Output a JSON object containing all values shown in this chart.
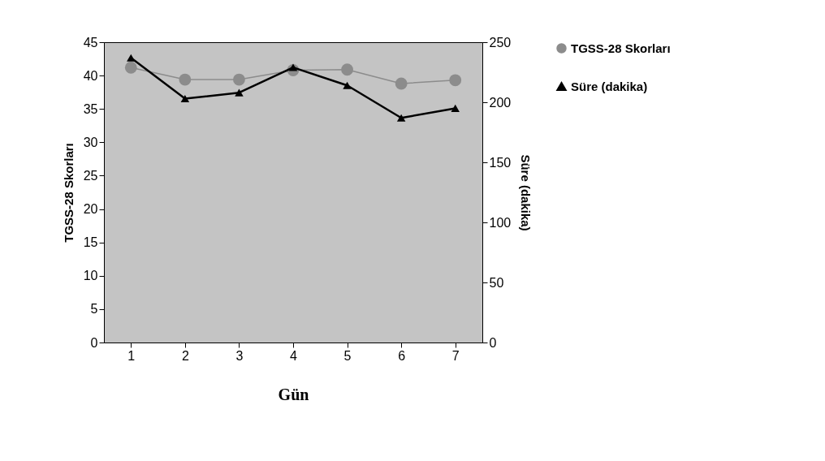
{
  "chart_data": {
    "type": "line",
    "xlabel": "Gün",
    "ylabel": "TGSS-28 Skorları",
    "y2label": "Süre (dakika)",
    "categories": [
      "1",
      "2",
      "3",
      "4",
      "5",
      "6",
      "7"
    ],
    "series": [
      {
        "name": "TGSS-28 Skorları",
        "color": "#8c8c8c",
        "marker": "circle",
        "values": [
          41.2,
          39.4,
          39.4,
          40.8,
          40.9,
          38.8,
          39.3
        ]
      },
      {
        "name": "Süre (dakika)",
        "color": "#000000",
        "marker": "triangle",
        "axis": "y2",
        "values": [
          237,
          203,
          208,
          229,
          214,
          187,
          195
        ]
      }
    ],
    "ylim": [
      0,
      45
    ],
    "yticks": [
      0,
      5,
      10,
      15,
      20,
      25,
      30,
      35,
      40,
      45
    ],
    "y2lim": [
      0,
      250
    ],
    "y2ticks": [
      0,
      50,
      100,
      150,
      200,
      250
    ],
    "legend": "right",
    "grid": false
  }
}
